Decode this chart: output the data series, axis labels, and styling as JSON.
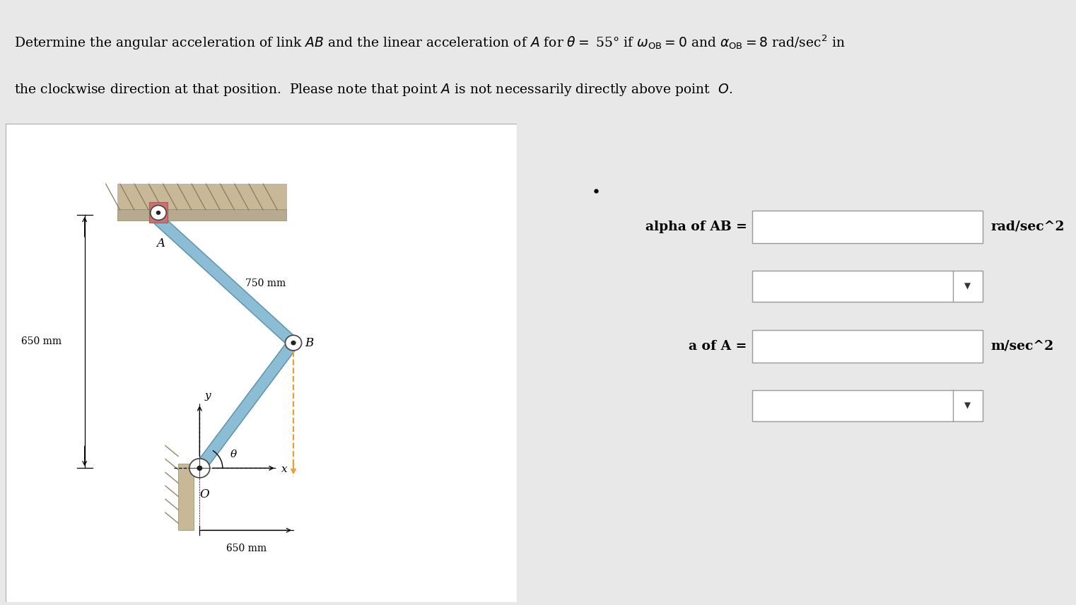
{
  "bg_color": "#e8e8e8",
  "white": "#ffffff",
  "text_color": "#000000",
  "blue_link": "#8bbdd4",
  "blue_link_edge": "#5a8fa8",
  "orange_dashed": "#e8a030",
  "tan_wall": "#c8b898",
  "salmon_block": "#cc7070",
  "theta_deg": 55,
  "OB_mm": 650,
  "AB_mm": 750,
  "label_A": "A",
  "label_B": "B",
  "label_O": "O",
  "label_x": "x",
  "label_y": "y",
  "label_theta": "θ",
  "dim_750": "750 mm",
  "dim_650_vert": "650 mm",
  "dim_650_horiz": "650 mm",
  "label_alpha_AB": "alpha of AB =",
  "label_rad": "rad/sec^2",
  "label_a_of_A": "a of A =",
  "label_msec": "m/sec^2"
}
